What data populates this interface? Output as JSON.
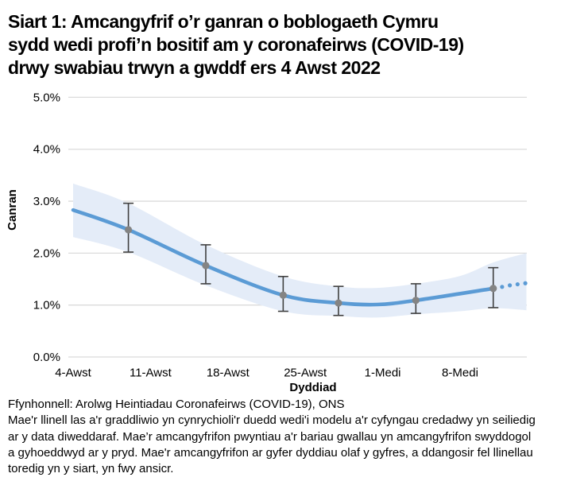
{
  "title": {
    "lines": [
      "Siart 1: Amcangyfrif o’r ganran o boblogaeth Cymru",
      "sydd wedi profi’n bositif am y coronafeirws (COVID-19)",
      "drwy swabiau trwyn a gwddf ers 4 Awst 2022"
    ]
  },
  "chart_data": {
    "type": "line",
    "xlabel": "Dyddiad",
    "ylabel": "Canran",
    "ylim": [
      0,
      5
    ],
    "x_domain_days": [
      0,
      41
    ],
    "grid": "horizontal-only",
    "legend": "none",
    "y_ticks": [
      {
        "value": 0,
        "label": "0.0%"
      },
      {
        "value": 1,
        "label": "1.0%"
      },
      {
        "value": 2,
        "label": "2.0%"
      },
      {
        "value": 3,
        "label": "3.0%"
      },
      {
        "value": 4,
        "label": "4.0%"
      },
      {
        "value": 5,
        "label": "5.0%"
      }
    ],
    "x_ticks": [
      {
        "day": 0,
        "label": "4-Awst"
      },
      {
        "day": 7,
        "label": "11-Awst"
      },
      {
        "day": 14,
        "label": "18-Awst"
      },
      {
        "day": 21,
        "label": "25-Awst"
      },
      {
        "day": 28,
        "label": "1-Medi"
      },
      {
        "day": 35,
        "label": "8-Medi"
      }
    ],
    "modelled_trend_pct": [
      {
        "day": 0,
        "value": 2.83
      },
      {
        "day": 5,
        "value": 2.45
      },
      {
        "day": 12,
        "value": 1.76
      },
      {
        "day": 19,
        "value": 1.19
      },
      {
        "day": 24,
        "value": 1.04
      },
      {
        "day": 27.5,
        "value": 1.01
      },
      {
        "day": 31,
        "value": 1.09
      },
      {
        "day": 38,
        "value": 1.32
      }
    ],
    "dotted_extension_pct": [
      {
        "day": 38.8,
        "value": 1.35
      },
      {
        "day": 39.5,
        "value": 1.38
      },
      {
        "day": 40.2,
        "value": 1.4
      },
      {
        "day": 40.9,
        "value": 1.42
      }
    ],
    "official_point_estimates": [
      {
        "date": "9-Awst",
        "day": 5,
        "value": 2.45,
        "ci_low": 2.02,
        "ci_high": 2.96
      },
      {
        "date": "16-Awst",
        "day": 12,
        "value": 1.76,
        "ci_low": 1.41,
        "ci_high": 2.16
      },
      {
        "date": "23-Awst",
        "day": 19,
        "value": 1.19,
        "ci_low": 0.88,
        "ci_high": 1.55
      },
      {
        "date": "28-Awst",
        "day": 24,
        "value": 1.04,
        "ci_low": 0.8,
        "ci_high": 1.36
      },
      {
        "date": "4-Medi",
        "day": 31,
        "value": 1.09,
        "ci_low": 0.84,
        "ci_high": 1.41
      },
      {
        "date": "11-Medi",
        "day": 38,
        "value": 1.32,
        "ci_low": 0.95,
        "ci_high": 1.72
      }
    ],
    "credible_band_pct": {
      "upper": [
        {
          "day": 0,
          "value": 3.34
        },
        {
          "day": 5,
          "value": 2.96
        },
        {
          "day": 12,
          "value": 2.16
        },
        {
          "day": 19,
          "value": 1.55
        },
        {
          "day": 24,
          "value": 1.36
        },
        {
          "day": 27.5,
          "value": 1.33
        },
        {
          "day": 31,
          "value": 1.41
        },
        {
          "day": 35,
          "value": 1.56
        },
        {
          "day": 38,
          "value": 1.82
        },
        {
          "day": 41,
          "value": 2.0
        }
      ],
      "lower": [
        {
          "day": 0,
          "value": 2.31
        },
        {
          "day": 5,
          "value": 2.02
        },
        {
          "day": 12,
          "value": 1.38
        },
        {
          "day": 19,
          "value": 0.88
        },
        {
          "day": 24,
          "value": 0.79
        },
        {
          "day": 27.5,
          "value": 0.76
        },
        {
          "day": 31,
          "value": 0.82
        },
        {
          "day": 35,
          "value": 0.88
        },
        {
          "day": 38,
          "value": 0.94
        },
        {
          "day": 41,
          "value": 0.9
        }
      ]
    }
  },
  "footer": {
    "source": "Ffynhonnell: Arolwg Heintiadau Coronafeirws (COVID-19), ONS",
    "notes": [
      "Mae'r llinell las a'r graddliwio yn cynrychioli'r duedd wedi'i modelu a'r cyfyngau credadwy yn seiliedig",
      "ar y data diweddaraf. Mae’r amcangyfrifon pwyntiau a'r bariau gwallau yn amcangyfrifon swyddogol",
      "a gyhoeddwyd ar y pryd. Mae'r amcangyfrifon ar gyfer dyddiau olaf y gyfres, a ddangosir fel llinellau",
      "toredig yn y siart, yn fwy ansicr."
    ]
  },
  "colors": {
    "trend_line": "#5B9BD5",
    "confidence_band": "#E4ECF8",
    "error_bar": "#404040",
    "data_point": "#848484",
    "gridline": "#DBDBDB",
    "text": "#000000"
  }
}
